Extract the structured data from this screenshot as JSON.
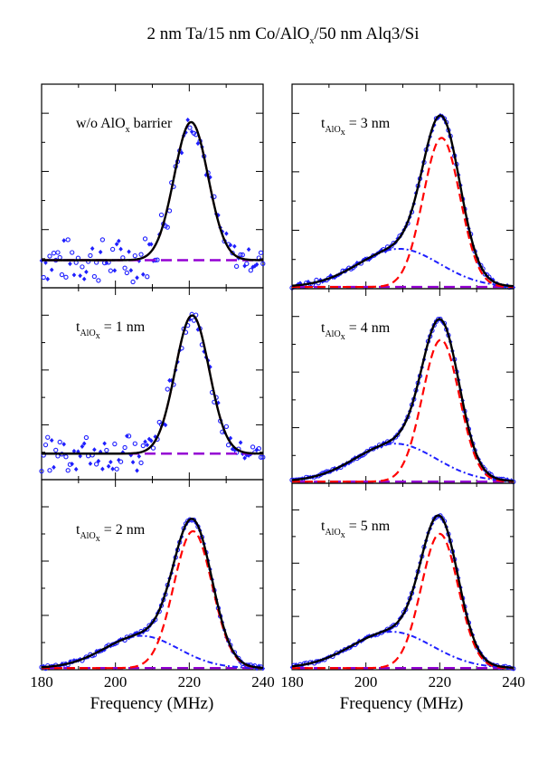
{
  "figure": {
    "title_parts": [
      "2 nm Ta/15 nm Co/AlO",
      "x",
      "/50 nm Alq3/Si"
    ],
    "xlabel": "Frequency (MHz)",
    "colors": {
      "data_points": "#1f1fff",
      "total_fit": "#000000",
      "main_peak": "#ff0000",
      "secondary_peak": "#1f1fff",
      "baseline": "#9400d3"
    }
  },
  "chart_data": [
    {
      "type": "line",
      "panel": "left-top",
      "label": "w/o AlOx barrier",
      "label_parts": [
        "w/o AlO",
        "x",
        " barrier"
      ],
      "xlim": [
        180,
        240
      ],
      "ylim": [
        0,
        1.18
      ],
      "xticks": [],
      "main_peak": {
        "center": 220.5,
        "sigma": 4.6,
        "amp": 0.8
      },
      "secondary_peak": null,
      "baseline": 0.16,
      "noise": 0.13,
      "scatter": "high"
    },
    {
      "type": "line",
      "panel": "left-middle",
      "label": "tAlOx = 1 nm",
      "label_parts": [
        "t",
        "AlO",
        "x",
        " = 1 nm"
      ],
      "xlim": [
        180,
        240
      ],
      "ylim": [
        0,
        1.18
      ],
      "xticks": [],
      "main_peak": {
        "center": 220.8,
        "sigma": 4.6,
        "amp": 0.85
      },
      "secondary_peak": null,
      "baseline": 0.16,
      "noise": 0.11,
      "scatter": "high"
    },
    {
      "type": "line",
      "panel": "left-bottom",
      "label": "tAlOx = 2 nm",
      "label_parts": [
        "t",
        "AlO",
        "x",
        " = 2 nm"
      ],
      "xlim": [
        180,
        240
      ],
      "ylim": [
        0,
        1.18
      ],
      "xticks": [
        180,
        200,
        220,
        240
      ],
      "main_peak": {
        "center": 221.0,
        "sigma": 5.2,
        "amp": 0.85
      },
      "secondary_peak": {
        "center": 207,
        "sigma": 10,
        "amp": 0.2
      },
      "baseline": 0.01,
      "noise": 0.02,
      "scatter": "low"
    },
    {
      "type": "line",
      "panel": "right-top",
      "label": "tAlOx = 3 nm",
      "label_parts": [
        "t",
        "AlO",
        "x",
        " = 3 nm"
      ],
      "xlim": [
        180,
        240
      ],
      "ylim": [
        0,
        1.18
      ],
      "xticks": [],
      "main_peak": {
        "center": 220.5,
        "sigma": 5.0,
        "amp": 0.86
      },
      "secondary_peak": {
        "center": 209,
        "sigma": 11,
        "amp": 0.22
      },
      "baseline": 0.01,
      "noise": 0.025,
      "scatter": "low"
    },
    {
      "type": "line",
      "panel": "right-middle",
      "label": "tAlOx = 4 nm",
      "label_parts": [
        "t",
        "AlO",
        "x",
        " = 4 nm"
      ],
      "xlim": [
        180,
        240
      ],
      "ylim": [
        0,
        1.18
      ],
      "xticks": [],
      "main_peak": {
        "center": 220.3,
        "sigma": 5.0,
        "amp": 0.86
      },
      "secondary_peak": {
        "center": 208,
        "sigma": 11,
        "amp": 0.23
      },
      "baseline": 0.01,
      "noise": 0.015,
      "scatter": "low"
    },
    {
      "type": "line",
      "panel": "right-bottom",
      "label": "tAlOx = 5 nm",
      "label_parts": [
        "t",
        "AlO",
        "x",
        " = 5 nm"
      ],
      "xlim": [
        180,
        240
      ],
      "ylim": [
        0,
        1.18
      ],
      "xticks": [
        180,
        200,
        220,
        240
      ],
      "main_peak": {
        "center": 220.0,
        "sigma": 5.0,
        "amp": 0.85
      },
      "secondary_peak": {
        "center": 207,
        "sigma": 11,
        "amp": 0.23
      },
      "baseline": 0.01,
      "noise": 0.015,
      "scatter": "low"
    }
  ]
}
